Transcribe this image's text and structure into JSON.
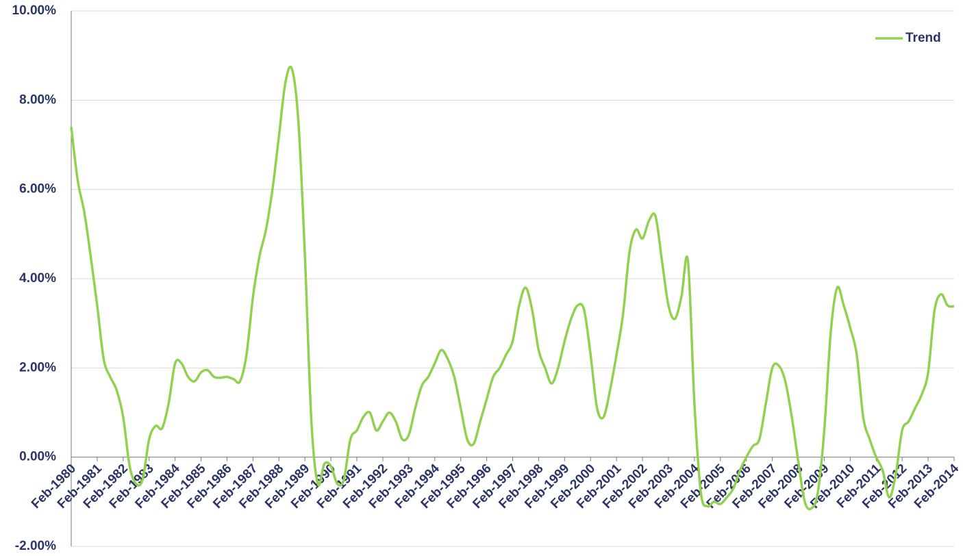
{
  "chart_data": {
    "type": "line",
    "categories": [
      "Feb-1980",
      null,
      null,
      null,
      "Feb-1981",
      null,
      null,
      null,
      "Feb-1982",
      null,
      null,
      null,
      "Feb-1983",
      null,
      null,
      null,
      "Feb-1984",
      null,
      null,
      null,
      "Feb-1985",
      null,
      null,
      null,
      "Feb-1986",
      null,
      null,
      null,
      "Feb-1987",
      null,
      null,
      null,
      "Feb-1988",
      null,
      null,
      null,
      "Feb-1989",
      null,
      null,
      null,
      "Feb-1990",
      null,
      null,
      null,
      "Feb-1991",
      null,
      null,
      null,
      "Feb-1992",
      null,
      null,
      null,
      "Feb-1993",
      null,
      null,
      null,
      "Feb-1994",
      null,
      null,
      null,
      "Feb-1995",
      null,
      null,
      null,
      "Feb-1996",
      null,
      null,
      null,
      "Feb-1997",
      null,
      null,
      null,
      "Feb-1998",
      null,
      null,
      null,
      "Feb-1999",
      null,
      null,
      null,
      "Feb-2000",
      null,
      null,
      null,
      "Feb-2001",
      null,
      null,
      null,
      "Feb-2002",
      null,
      null,
      null,
      "Feb-2003",
      null,
      null,
      null,
      "Feb-2004",
      null,
      null,
      null,
      "Feb-2005",
      null,
      null,
      null,
      "Feb-2006",
      null,
      null,
      null,
      "Feb-2007",
      null,
      null,
      null,
      "Feb-2008",
      null,
      null,
      null,
      "Feb-2009",
      null,
      null,
      null,
      "Feb-2010",
      null,
      null,
      null,
      "Feb-2011",
      null,
      null,
      null,
      "Feb-2012",
      null,
      null,
      null,
      "Feb-2013",
      null,
      null,
      null,
      "Feb-2014"
    ],
    "series": [
      {
        "name": "Trend",
        "color": "#92d050",
        "values": [
          7.4,
          6.2,
          5.5,
          4.5,
          3.4,
          2.2,
          1.8,
          1.5,
          0.9,
          -0.2,
          -0.6,
          -0.5,
          0.4,
          0.7,
          0.65,
          1.2,
          2.1,
          2.1,
          1.8,
          1.7,
          1.9,
          1.95,
          1.8,
          1.78,
          1.8,
          1.75,
          1.7,
          2.3,
          3.6,
          4.5,
          5.1,
          6.0,
          7.2,
          8.4,
          8.7,
          7.5,
          4.5,
          0.8,
          -0.6,
          -0.15,
          -0.2,
          -0.6,
          -0.5,
          0.4,
          0.6,
          0.9,
          1.0,
          0.6,
          0.8,
          1.0,
          0.8,
          0.4,
          0.5,
          1.1,
          1.6,
          1.8,
          2.1,
          2.4,
          2.2,
          1.8,
          1.1,
          0.4,
          0.3,
          0.8,
          1.3,
          1.8,
          2.0,
          2.3,
          2.6,
          3.4,
          3.8,
          3.3,
          2.4,
          2.0,
          1.65,
          2.0,
          2.6,
          3.1,
          3.4,
          3.3,
          2.3,
          1.1,
          0.9,
          1.5,
          2.3,
          3.2,
          4.6,
          5.1,
          4.9,
          5.3,
          5.4,
          4.4,
          3.4,
          3.1,
          3.6,
          4.4,
          1.2,
          -0.8,
          -1.1,
          -1.0,
          -1.05,
          -0.9,
          -0.7,
          -0.3,
          0.0,
          0.25,
          0.4,
          1.2,
          2.0,
          2.05,
          1.7,
          0.9,
          -0.1,
          -1.0,
          -1.15,
          -0.8,
          0.6,
          2.8,
          3.8,
          3.4,
          2.9,
          2.3,
          0.9,
          0.4,
          0.0,
          -0.3,
          -0.9,
          -0.4,
          0.6,
          0.8,
          1.1,
          1.4,
          1.9,
          3.3,
          3.65,
          3.4,
          3.38
        ]
      }
    ],
    "ylim": [
      -2,
      10
    ],
    "yticks": [
      {
        "value": -2,
        "label": "-2.00%"
      },
      {
        "value": 0,
        "label": "0.00%"
      },
      {
        "value": 2,
        "label": "2.00%"
      },
      {
        "value": 4,
        "label": "4.00%"
      },
      {
        "value": 6,
        "label": "6.00%"
      },
      {
        "value": 8,
        "label": "8.00%"
      },
      {
        "value": 10,
        "label": "10.00%"
      }
    ],
    "grid": true,
    "legend": "top-right"
  }
}
